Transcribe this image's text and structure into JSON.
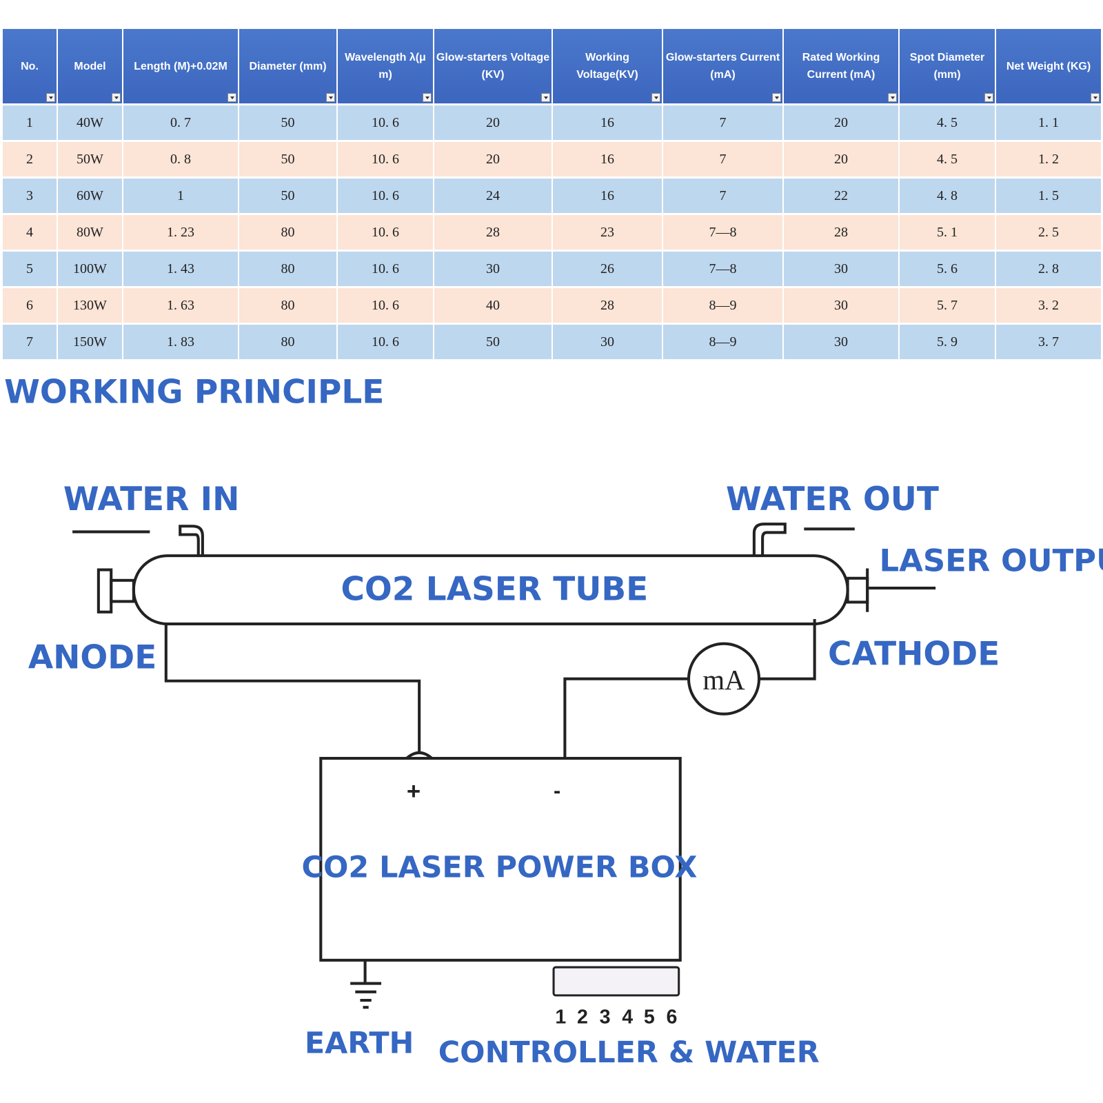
{
  "table": {
    "columns": [
      "No.",
      "Model",
      "Length (M)+0.02M",
      "Diameter (mm)",
      "Wavelength λ(μ m)",
      "Glow-starters Voltage (KV)",
      "Working Voltage(KV)",
      "Glow-starters Current (mA)",
      "Rated Working Current (mA)",
      "Spot Diameter (mm)",
      "Net Weight (KG)"
    ],
    "rows": [
      [
        "1",
        "40W",
        "0. 7",
        "50",
        "10. 6",
        "20",
        "16",
        "7",
        "20",
        "4. 5",
        "1. 1"
      ],
      [
        "2",
        "50W",
        "0. 8",
        "50",
        "10. 6",
        "20",
        "16",
        "7",
        "20",
        "4. 5",
        "1. 2"
      ],
      [
        "3",
        "60W",
        "1",
        "50",
        "10. 6",
        "24",
        "16",
        "7",
        "22",
        "4. 8",
        "1. 5"
      ],
      [
        "4",
        "80W",
        "1. 23",
        "80",
        "10. 6",
        "28",
        "23",
        "7—8",
        "28",
        "5. 1",
        "2. 5"
      ],
      [
        "5",
        "100W",
        "1. 43",
        "80",
        "10. 6",
        "30",
        "26",
        "7—8",
        "30",
        "5. 6",
        "2. 8"
      ],
      [
        "6",
        "130W",
        "1. 63",
        "80",
        "10. 6",
        "40",
        "28",
        "8—9",
        "30",
        "5. 7",
        "3. 2"
      ],
      [
        "7",
        "150W",
        "1. 83",
        "80",
        "10. 6",
        "50",
        "30",
        "8—9",
        "30",
        "5. 9",
        "3. 7"
      ]
    ],
    "colors": {
      "header": "#4472c4",
      "row_blue": "#bdd7ee",
      "row_peach": "#fce4d6"
    }
  },
  "section_title": "WORKING PRINCIPLE",
  "diagram": {
    "water_in": "WATER IN",
    "water_out": "WATER OUT",
    "laser_output": "LASER OUTPUT",
    "tube": "CO2 LASER TUBE",
    "anode": "ANODE",
    "cathode": "CATHODE",
    "meter": "mA",
    "plus": "+",
    "minus": "-",
    "power_box": "CO2 LASER POWER BOX",
    "terminals": [
      "1",
      "2",
      "3",
      "4",
      "5",
      "6"
    ],
    "earth": "EARTH",
    "controller": "CONTROLLER & WATER",
    "label_color": "#3567c3"
  }
}
